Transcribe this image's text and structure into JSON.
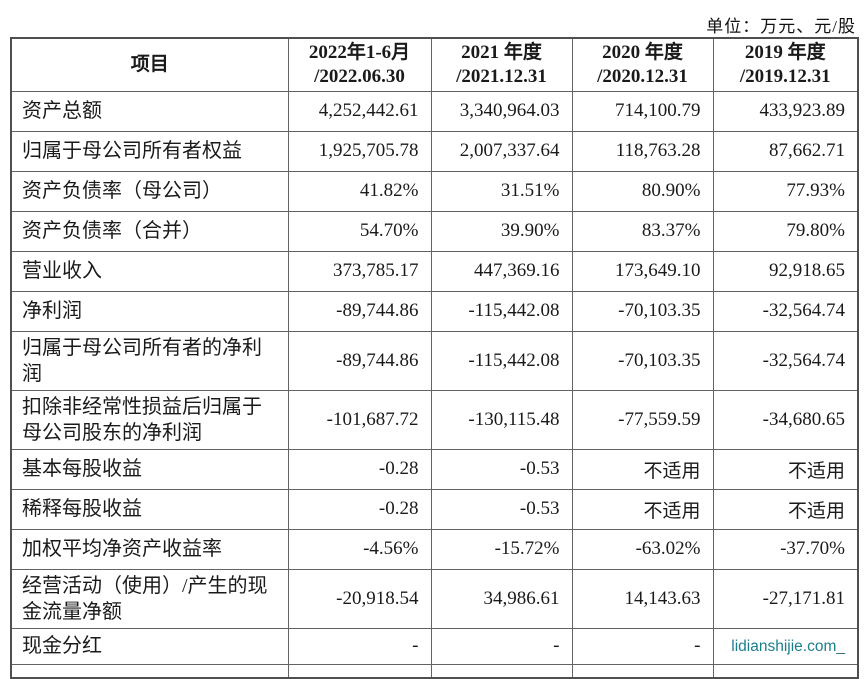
{
  "meta": {
    "unit_label": "单位：万元、元/股"
  },
  "watermark": {
    "text": "lidianshijie.com",
    "suffix": "_",
    "color": "#1b7e8f"
  },
  "table": {
    "header": {
      "item_label": "项目",
      "periods": [
        {
          "line1": "2022年1-6月",
          "line2": "/2022.06.30"
        },
        {
          "line1": "2021 年度",
          "line2": "/2021.12.31"
        },
        {
          "line1": "2020 年度",
          "line2": "/2020.12.31"
        },
        {
          "line1": "2019 年度",
          "line2": "/2019.12.31"
        }
      ]
    },
    "rows": [
      {
        "label": "资产总额",
        "values": [
          "4,252,442.61",
          "3,340,964.03",
          "714,100.79",
          "433,923.89"
        ]
      },
      {
        "label": "归属于母公司所有者权益",
        "values": [
          "1,925,705.78",
          "2,007,337.64",
          "118,763.28",
          "87,662.71"
        ]
      },
      {
        "label": "资产负债率（母公司）",
        "values": [
          "41.82%",
          "31.51%",
          "80.90%",
          "77.93%"
        ]
      },
      {
        "label": "资产负债率（合并）",
        "values": [
          "54.70%",
          "39.90%",
          "83.37%",
          "79.80%"
        ]
      },
      {
        "label": "营业收入",
        "values": [
          "373,785.17",
          "447,369.16",
          "173,649.10",
          "92,918.65"
        ]
      },
      {
        "label": "净利润",
        "values": [
          "-89,744.86",
          "-115,442.08",
          "-70,103.35",
          "-32,564.74"
        ]
      },
      {
        "label": "归属于母公司所有者的净利\n润",
        "values": [
          "-89,744.86",
          "-115,442.08",
          "-70,103.35",
          "-32,564.74"
        ]
      },
      {
        "label": "扣除非经常性损益后归属于\n母公司股东的净利润",
        "values": [
          "-101,687.72",
          "-130,115.48",
          "-77,559.59",
          "-34,680.65"
        ]
      },
      {
        "label": "基本每股收益",
        "values": [
          "-0.28",
          "-0.53",
          "不适用",
          "不适用"
        ]
      },
      {
        "label": "稀释每股收益",
        "values": [
          "-0.28",
          "-0.53",
          "不适用",
          "不适用"
        ]
      },
      {
        "label": "加权平均净资产收益率",
        "values": [
          "-4.56%",
          "-15.72%",
          "-63.02%",
          "-37.70%"
        ]
      },
      {
        "label": "经营活动（使用）/产生的现\n金流量净额",
        "values": [
          "-20,918.54",
          "34,986.61",
          "14,143.63",
          "-27,171.81"
        ]
      },
      {
        "label": "现金分红",
        "values": [
          "-",
          "-",
          "-",
          ""
        ],
        "watermark_in_last_cell": true,
        "short": true
      }
    ]
  }
}
